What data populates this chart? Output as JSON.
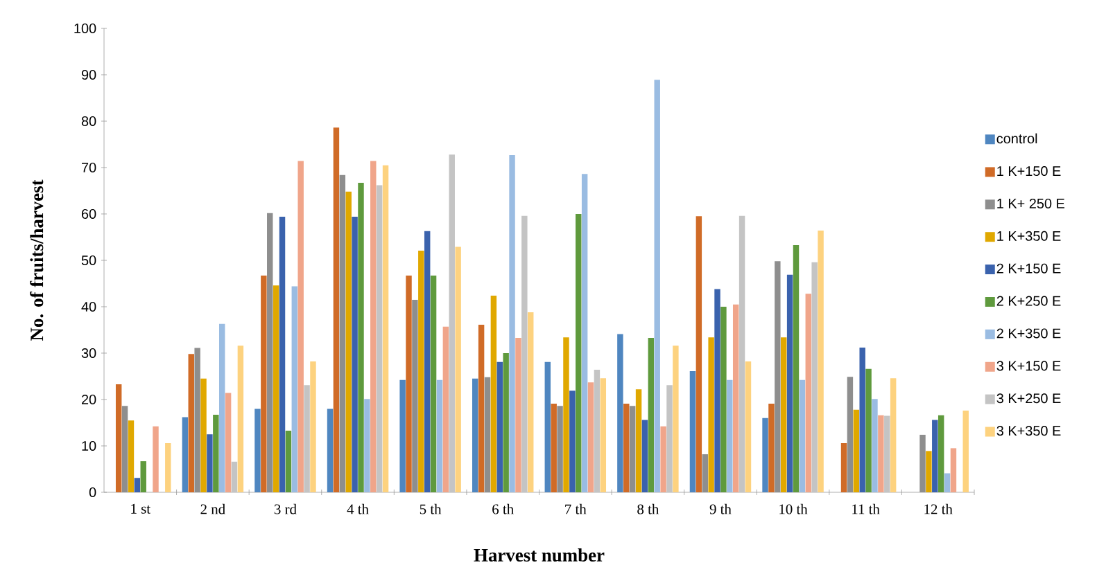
{
  "chart_data": {
    "type": "bar",
    "xlabel": "Harvest number",
    "ylabel": "No. of fruits/harvest",
    "categories": [
      "1 st",
      "2 nd",
      "3 rd",
      "4 th",
      "5 th",
      "6 th",
      "7 th",
      "8 th",
      "9 th",
      "10 th",
      "11 th",
      "12 th"
    ],
    "series": [
      {
        "name": "control",
        "color": "#4f86c0",
        "values": [
          0,
          16.2,
          18,
          18,
          24.2,
          24.5,
          28.1,
          34.1,
          26.1,
          16,
          0,
          0
        ]
      },
      {
        "name": "1 K+150 E",
        "color": "#d06b27",
        "values": [
          23.3,
          29.8,
          46.7,
          78.6,
          46.7,
          36.1,
          19.1,
          19.1,
          59.5,
          19.1,
          10.6,
          0
        ]
      },
      {
        "name": "1 K+ 250 E",
        "color": "#8e8e8e",
        "values": [
          18.6,
          31.1,
          60.2,
          68.4,
          41.5,
          24.8,
          18.6,
          18.6,
          8.2,
          49.8,
          24.9,
          12.4
        ]
      },
      {
        "name": "1 K+350 E",
        "color": "#e0a800",
        "values": [
          15.5,
          24.5,
          44.6,
          64.8,
          52.1,
          42.4,
          33.4,
          22.2,
          33.4,
          33.4,
          17.8,
          8.9
        ]
      },
      {
        "name": "2 K+150 E",
        "color": "#3a62ad",
        "values": [
          3.1,
          12.5,
          59.4,
          59.4,
          56.3,
          28.1,
          21.9,
          15.6,
          43.8,
          46.9,
          31.2,
          15.6
        ]
      },
      {
        "name": "2 K+250 E",
        "color": "#5f9a3d",
        "values": [
          6.7,
          16.7,
          13.3,
          66.7,
          46.7,
          30,
          60,
          33.3,
          40,
          53.3,
          26.6,
          16.6
        ]
      },
      {
        "name": "2 K+350 E",
        "color": "#9abce2",
        "values": [
          0,
          36.3,
          44.4,
          20.1,
          24.2,
          72.7,
          68.6,
          88.9,
          24.2,
          24.2,
          20.1,
          4.1
        ]
      },
      {
        "name": "3 K+150 E",
        "color": "#f0a58a",
        "values": [
          14.2,
          21.4,
          71.4,
          71.4,
          35.7,
          33.3,
          23.7,
          14.2,
          40.5,
          42.8,
          16.6,
          9.5
        ]
      },
      {
        "name": "3 K+250 E",
        "color": "#c4c4c4",
        "values": [
          0,
          6.6,
          23.1,
          66.2,
          72.8,
          59.6,
          26.4,
          23.1,
          59.6,
          49.6,
          16.5,
          0
        ]
      },
      {
        "name": "3 K+350 E",
        "color": "#fdd27f",
        "values": [
          10.6,
          31.6,
          28.2,
          70.5,
          52.9,
          38.8,
          24.6,
          31.6,
          28.2,
          56.4,
          24.6,
          17.6
        ]
      }
    ],
    "ylim": [
      0,
      100
    ],
    "yticks": [
      0,
      10,
      20,
      30,
      40,
      50,
      60,
      70,
      80,
      90,
      100
    ],
    "legend": "right"
  }
}
